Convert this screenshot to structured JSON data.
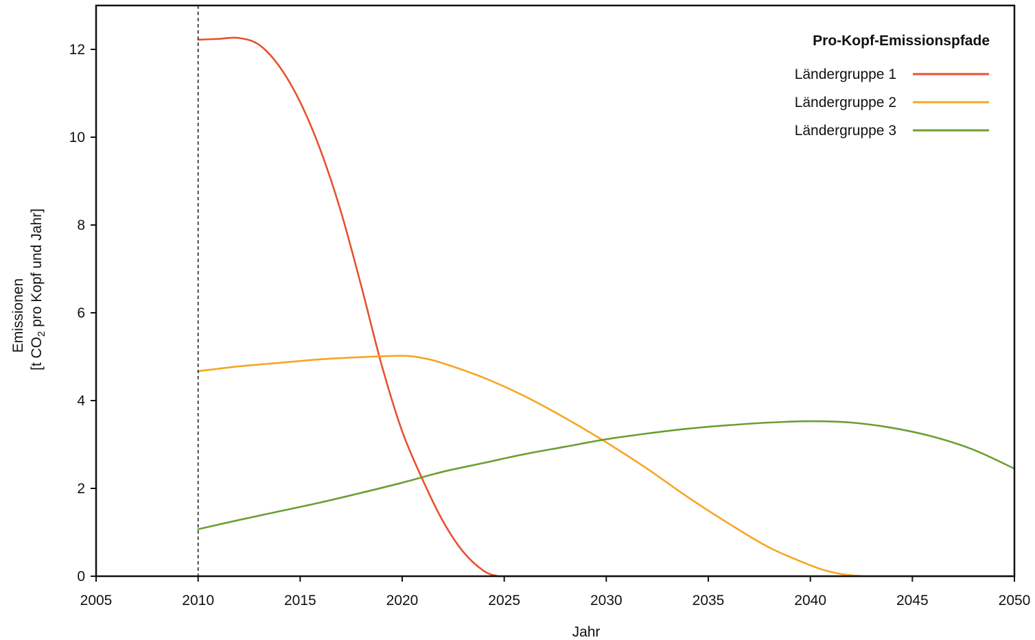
{
  "chart_data": {
    "type": "line",
    "xlabel": "Jahr",
    "ylabel_line1": "Emissionen",
    "ylabel_line2_prefix": "[t CO",
    "ylabel_line2_sub": "2",
    "ylabel_line2_suffix": " pro Kopf und Jahr]",
    "xlim": [
      2005,
      2050
    ],
    "ylim": [
      0,
      13
    ],
    "xticks": [
      2005,
      2010,
      2015,
      2020,
      2025,
      2030,
      2035,
      2040,
      2045,
      2050
    ],
    "yticks": [
      0,
      2,
      4,
      6,
      8,
      10,
      12
    ],
    "reference_line_x": 2010,
    "legend": {
      "title": "Pro-Kopf-Emissionspfade",
      "position": "top-right"
    },
    "series": [
      {
        "name": "Ländergruppe 1",
        "color": "#e8502f",
        "points": [
          [
            2010,
            12.22
          ],
          [
            2011,
            12.24
          ],
          [
            2012,
            12.26
          ],
          [
            2013,
            12.1
          ],
          [
            2014,
            11.6
          ],
          [
            2015,
            10.8
          ],
          [
            2016,
            9.7
          ],
          [
            2017,
            8.3
          ],
          [
            2018,
            6.6
          ],
          [
            2019,
            4.8
          ],
          [
            2020,
            3.3
          ],
          [
            2021,
            2.2
          ],
          [
            2022,
            1.25
          ],
          [
            2023,
            0.55
          ],
          [
            2024,
            0.12
          ],
          [
            2024.7,
            0.0
          ],
          [
            2025,
            0.0
          ],
          [
            2030,
            0.0
          ],
          [
            2035,
            0.0
          ],
          [
            2040,
            0.0
          ],
          [
            2045,
            0.0
          ],
          [
            2050,
            0.0
          ]
        ]
      },
      {
        "name": "Ländergruppe 2",
        "color": "#f5a623",
        "points": [
          [
            2010,
            4.67
          ],
          [
            2012,
            4.78
          ],
          [
            2014,
            4.86
          ],
          [
            2016,
            4.94
          ],
          [
            2018,
            4.99
          ],
          [
            2020,
            5.02
          ],
          [
            2021,
            4.97
          ],
          [
            2022,
            4.85
          ],
          [
            2024,
            4.52
          ],
          [
            2026,
            4.1
          ],
          [
            2028,
            3.6
          ],
          [
            2030,
            3.05
          ],
          [
            2032,
            2.45
          ],
          [
            2034,
            1.8
          ],
          [
            2036,
            1.2
          ],
          [
            2038,
            0.65
          ],
          [
            2040,
            0.25
          ],
          [
            2041,
            0.1
          ],
          [
            2042,
            0.02
          ],
          [
            2043,
            0.0
          ],
          [
            2045,
            0.0
          ],
          [
            2050,
            0.0
          ]
        ]
      },
      {
        "name": "Ländergruppe 3",
        "color": "#6b9e32",
        "points": [
          [
            2010,
            1.07
          ],
          [
            2012,
            1.28
          ],
          [
            2014,
            1.48
          ],
          [
            2016,
            1.68
          ],
          [
            2018,
            1.9
          ],
          [
            2020,
            2.13
          ],
          [
            2022,
            2.38
          ],
          [
            2024,
            2.58
          ],
          [
            2026,
            2.78
          ],
          [
            2028,
            2.95
          ],
          [
            2030,
            3.12
          ],
          [
            2032,
            3.25
          ],
          [
            2034,
            3.36
          ],
          [
            2036,
            3.44
          ],
          [
            2038,
            3.5
          ],
          [
            2040,
            3.53
          ],
          [
            2042,
            3.5
          ],
          [
            2044,
            3.38
          ],
          [
            2046,
            3.18
          ],
          [
            2048,
            2.88
          ],
          [
            2050,
            2.45
          ]
        ]
      }
    ]
  }
}
